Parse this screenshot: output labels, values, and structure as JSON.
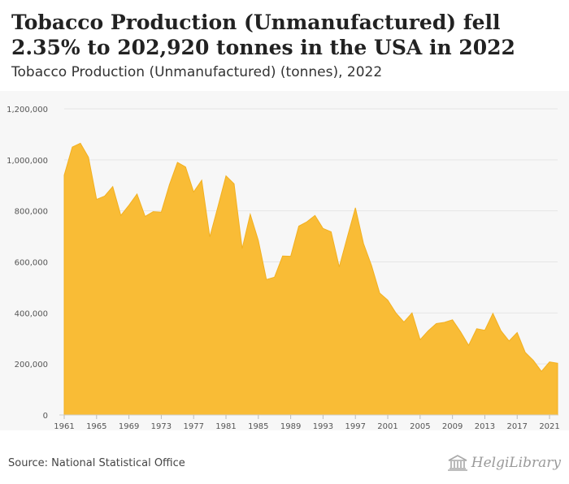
{
  "header": {
    "title": "Tobacco Production (Unmanufactured) fell 2.35% to 202,920 tonnes in the USA in 2022",
    "subtitle": "Tobacco Production (Unmanufactured) (tonnes), 2022"
  },
  "footer": {
    "source": "Source: National Statistical Office",
    "brand": "HelgiLibrary"
  },
  "colors": {
    "area_fill": "#f9bc36",
    "area_stroke": "#f2b020",
    "plot_background": "#f7f7f7",
    "gridline": "#e6e6e6",
    "axis_text": "#555555"
  },
  "chart_data": {
    "type": "area",
    "title": "Tobacco Production (Unmanufactured) (tonnes), 2022",
    "xlabel": "",
    "ylabel": "",
    "xlim": [
      1961,
      2022
    ],
    "ylim": [
      0,
      1200000
    ],
    "grid": true,
    "legend": "none",
    "x_ticks": [
      1961,
      1965,
      1969,
      1973,
      1977,
      1981,
      1985,
      1989,
      1993,
      1997,
      2001,
      2005,
      2009,
      2013,
      2017,
      2021
    ],
    "y_ticks": [
      0,
      200000,
      400000,
      600000,
      800000,
      1000000,
      1200000
    ],
    "y_tick_labels": [
      "0",
      "200,000",
      "400,000",
      "600,000",
      "800,000",
      "1,000,000",
      "1,200,000"
    ],
    "series": [
      {
        "name": "Tobacco Production (Unmanufactured)",
        "x": [
          1961,
          1962,
          1963,
          1964,
          1965,
          1966,
          1967,
          1968,
          1969,
          1970,
          1971,
          1972,
          1973,
          1974,
          1975,
          1976,
          1977,
          1978,
          1979,
          1980,
          1981,
          1982,
          1983,
          1984,
          1985,
          1986,
          1987,
          1988,
          1989,
          1990,
          1991,
          1992,
          1993,
          1994,
          1995,
          1996,
          1997,
          1998,
          1999,
          2000,
          2001,
          2002,
          2003,
          2004,
          2005,
          2006,
          2007,
          2008,
          2009,
          2010,
          2011,
          2012,
          2013,
          2014,
          2015,
          2016,
          2017,
          2018,
          2019,
          2020,
          2021,
          2022
        ],
        "values": [
          940000,
          1050000,
          1065000,
          1010000,
          845000,
          858000,
          895000,
          782000,
          822000,
          866000,
          778000,
          797000,
          795000,
          902000,
          990000,
          972000,
          874000,
          920000,
          698000,
          816000,
          937000,
          906000,
          652000,
          787000,
          684000,
          531000,
          540000,
          623000,
          622000,
          740000,
          757000,
          782000,
          731000,
          718000,
          580000,
          697000,
          812000,
          672000,
          585000,
          478000,
          450000,
          400000,
          364000,
          400000,
          295000,
          330000,
          358000,
          363000,
          373000,
          326000,
          273000,
          338000,
          332000,
          398000,
          330000,
          290000,
          323000,
          245000,
          214000,
          171000,
          208000,
          202920
        ]
      }
    ]
  }
}
